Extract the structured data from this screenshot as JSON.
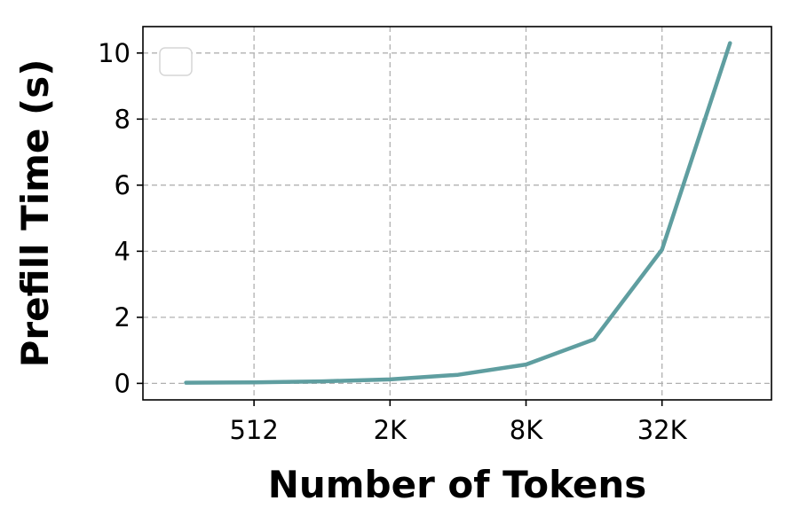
{
  "chart_data": {
    "type": "line",
    "title": "",
    "xlabel": "Number of Tokens",
    "ylabel": "Prefill Time (s)",
    "x_scale": "log2",
    "x": [
      256,
      512,
      1024,
      2048,
      4096,
      8192,
      16384,
      32768,
      65536
    ],
    "x_ticks": [
      512,
      2048,
      8192,
      32768
    ],
    "x_tick_labels": [
      "512",
      "2K",
      "8K",
      "32K"
    ],
    "xlim": [
      165,
      100000
    ],
    "ylim": [
      -0.5,
      10.8
    ],
    "y_ticks": [
      0,
      2,
      4,
      6,
      8,
      10
    ],
    "y_tick_labels": [
      "0",
      "2",
      "4",
      "6",
      "8",
      "10"
    ],
    "grid": true,
    "legend": "top-left (empty)",
    "series": [
      {
        "values": [
          0.02,
          0.03,
          0.06,
          0.12,
          0.26,
          0.57,
          1.33,
          4.05,
          10.3
        ],
        "color": "#5f9ea0"
      }
    ]
  }
}
